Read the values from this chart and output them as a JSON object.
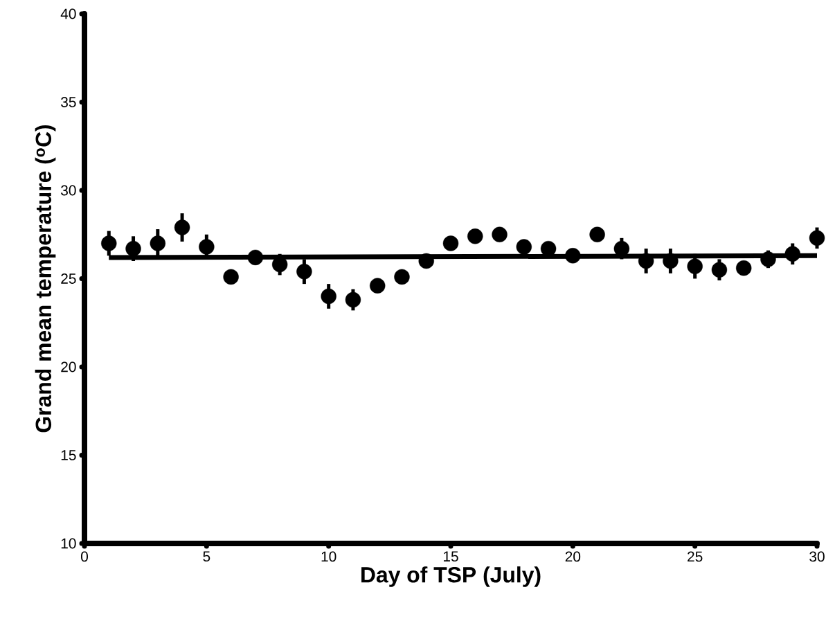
{
  "chart_data": {
    "type": "scatter",
    "xlabel": "Day of TSP (July)",
    "ylabel": "Grand mean temperature ($^{o}$C)",
    "xlim": [
      0,
      30
    ],
    "ylim": [
      10,
      40
    ],
    "xticks": [
      0,
      5,
      10,
      15,
      20,
      25,
      30
    ],
    "yticks": [
      10,
      15,
      20,
      25,
      30,
      35,
      40
    ],
    "series": [
      {
        "marker": "circle",
        "color": "#000000",
        "x": [
          1,
          2,
          3,
          4,
          5,
          6,
          7,
          8,
          9,
          10,
          11,
          12,
          13,
          14,
          15,
          16,
          17,
          18,
          19,
          20,
          21,
          22,
          23,
          24,
          25,
          26,
          27,
          28,
          29,
          30
        ],
        "values": [
          27.0,
          26.7,
          27.0,
          27.9,
          26.8,
          25.1,
          26.2,
          25.8,
          25.4,
          24.0,
          23.8,
          24.6,
          25.1,
          26.0,
          27.0,
          27.4,
          27.5,
          26.8,
          26.7,
          26.3,
          27.5,
          26.7,
          26.0,
          26.0,
          25.7,
          25.5,
          25.6,
          26.1,
          26.4,
          27.3
        ],
        "errors": [
          0.7,
          0.7,
          0.8,
          0.8,
          0.7,
          0.4,
          null,
          0.6,
          0.7,
          0.7,
          0.6,
          null,
          null,
          null,
          null,
          null,
          null,
          null,
          null,
          null,
          null,
          0.6,
          0.7,
          0.7,
          0.7,
          0.6,
          null,
          0.5,
          0.6,
          0.6
        ]
      },
      {
        "type": "line",
        "marker": "none",
        "color": "#000000",
        "x": [
          1,
          30
        ],
        "values": [
          26.2,
          26.3
        ]
      }
    ]
  }
}
